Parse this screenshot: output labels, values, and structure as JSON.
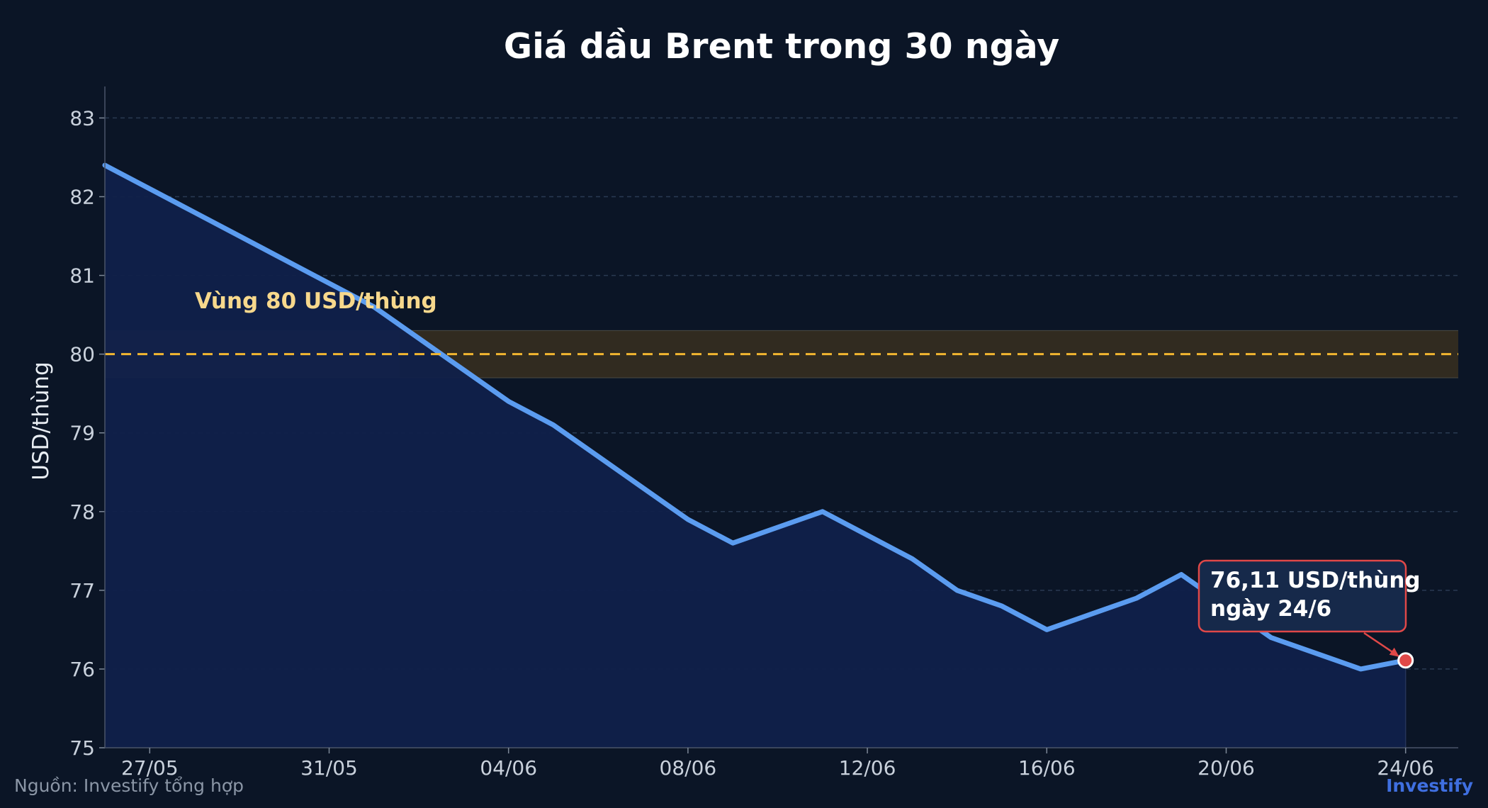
{
  "colors": {
    "background": "#0b1526",
    "line": "#5b9cf0",
    "area_fill": "#0f1f47",
    "reference_line": "#f2b630",
    "reference_band": "#6b5a1e",
    "marker": "#e04848",
    "callout_border": "#e04848",
    "callout_fill": "#16294a",
    "brand": "#3f6fe0"
  },
  "footer": {
    "source": "Nguồn: Investify tổng hợp",
    "brand": "Investify"
  },
  "chart_data": {
    "type": "area",
    "title": "Giá dầu Brent trong 30 ngày",
    "xlabel": "",
    "ylabel": "USD/thùng",
    "ylim": [
      75,
      83.4
    ],
    "yticks": [
      75,
      76,
      77,
      78,
      79,
      80,
      81,
      82,
      83
    ],
    "xticks": [
      "27/05",
      "31/05",
      "04/06",
      "08/06",
      "12/06",
      "16/06",
      "20/06",
      "24/06"
    ],
    "grid": "horizontal dashed",
    "x": [
      "26/05",
      "27/05",
      "28/05",
      "29/05",
      "30/05",
      "31/05",
      "01/06",
      "02/06",
      "03/06",
      "04/06",
      "05/06",
      "06/06",
      "07/06",
      "08/06",
      "09/06",
      "10/06",
      "11/06",
      "12/06",
      "13/06",
      "14/06",
      "15/06",
      "16/06",
      "17/06",
      "18/06",
      "19/06",
      "20/06",
      "21/06",
      "22/06",
      "23/06",
      "24/06"
    ],
    "series": [
      {
        "values": [
          82.4,
          82.1,
          81.8,
          81.5,
          81.2,
          80.9,
          80.6,
          80.2,
          79.8,
          79.4,
          79.1,
          78.7,
          78.3,
          77.9,
          77.6,
          77.8,
          78.0,
          77.7,
          77.4,
          77.0,
          76.8,
          76.5,
          76.7,
          76.9,
          77.2,
          76.8,
          76.4,
          76.2,
          76.0,
          76.11
        ]
      }
    ],
    "reference_band": {
      "center": 80,
      "range": [
        79.7,
        80.3
      ],
      "label": "Vùng 80 USD/thùng"
    },
    "annotation": {
      "x": "24/06",
      "value": 76.11,
      "lines": [
        "76,11 USD/thùng",
        "ngày 24/6"
      ]
    }
  }
}
